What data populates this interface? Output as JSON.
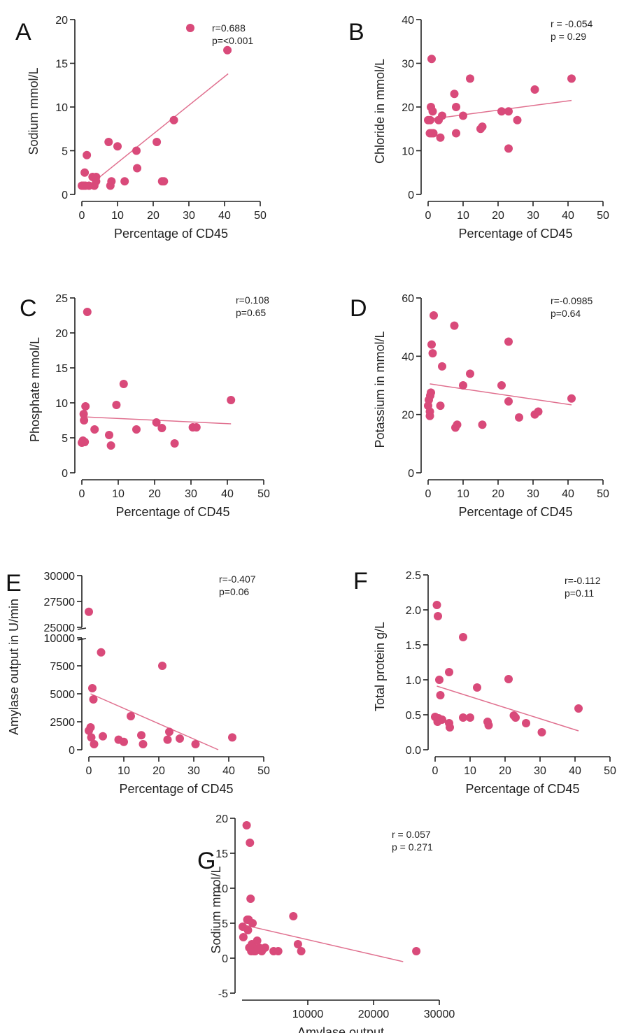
{
  "colors": {
    "point": "#d94a7a",
    "fit_line": "#e0708f",
    "axis": "#222222"
  },
  "chart_data": [
    {
      "id": "A",
      "type": "scatter",
      "panel_label": "A",
      "xlabel": "Percentage of CD45",
      "ylabel": "Sodium mmol/L",
      "xlim": [
        0,
        50
      ],
      "ylim": [
        0,
        20
      ],
      "xticks": [
        0,
        10,
        20,
        30,
        40,
        50
      ],
      "yticks": [
        0,
        5,
        10,
        15,
        20
      ],
      "stat_lines": [
        "r=0.688",
        "p=<0.001"
      ],
      "legend_marker": true,
      "fit": {
        "x": [
          3.5,
          41
        ],
        "y": [
          1.5,
          13.8
        ]
      },
      "points": [
        [
          0,
          1
        ],
        [
          0.5,
          1
        ],
        [
          0.8,
          2.5
        ],
        [
          1,
          1
        ],
        [
          1.4,
          4.5
        ],
        [
          2,
          1
        ],
        [
          3,
          2
        ],
        [
          3.5,
          1
        ],
        [
          4,
          1.5
        ],
        [
          4,
          2
        ],
        [
          7.5,
          6
        ],
        [
          8,
          1
        ],
        [
          8.3,
          1.5
        ],
        [
          10,
          5.5
        ],
        [
          12,
          1.5
        ],
        [
          15.3,
          5
        ],
        [
          15.5,
          3
        ],
        [
          21,
          6
        ],
        [
          22.5,
          1.5
        ],
        [
          23,
          1.5
        ],
        [
          25.8,
          8.5
        ],
        [
          40.8,
          16.5
        ]
      ]
    },
    {
      "id": "B",
      "type": "scatter",
      "panel_label": "B",
      "xlabel": "Percentage of CD45",
      "ylabel": "Chloride in mmol/L",
      "xlim": [
        0,
        50
      ],
      "ylim": [
        0,
        40
      ],
      "xticks": [
        0,
        10,
        20,
        30,
        40,
        50
      ],
      "yticks": [
        0,
        10,
        20,
        30,
        40
      ],
      "stat_lines": [
        "r = -0.054",
        "p = 0.29"
      ],
      "fit": {
        "x": [
          0.5,
          41
        ],
        "y": [
          17.2,
          21.5
        ]
      },
      "points": [
        [
          0,
          17
        ],
        [
          0.5,
          14
        ],
        [
          0.6,
          17
        ],
        [
          0.8,
          20
        ],
        [
          1,
          31
        ],
        [
          1,
          14
        ],
        [
          1.3,
          19
        ],
        [
          1.5,
          14
        ],
        [
          3,
          17
        ],
        [
          3.5,
          13
        ],
        [
          4,
          18
        ],
        [
          7.5,
          23
        ],
        [
          8,
          20
        ],
        [
          8,
          14
        ],
        [
          10,
          18
        ],
        [
          12,
          26.5
        ],
        [
          15,
          15
        ],
        [
          15.5,
          15.5
        ],
        [
          21,
          19
        ],
        [
          23,
          10.5
        ],
        [
          23,
          19
        ],
        [
          25.5,
          17
        ],
        [
          30.5,
          24
        ],
        [
          41,
          26.5
        ]
      ]
    },
    {
      "id": "C",
      "type": "scatter",
      "panel_label": "C",
      "xlabel": "Percentage of CD45",
      "ylabel": "Phosphate mmol/L",
      "xlim": [
        0,
        50
      ],
      "ylim": [
        0,
        25
      ],
      "xticks": [
        0,
        10,
        20,
        30,
        40,
        50
      ],
      "yticks": [
        0,
        5,
        10,
        15,
        20,
        25
      ],
      "stat_lines": [
        "r=0.108",
        "p=0.65"
      ],
      "fit": {
        "x": [
          0.5,
          41
        ],
        "y": [
          8.0,
          7.0
        ]
      },
      "points": [
        [
          0,
          4.3
        ],
        [
          0.3,
          4.6
        ],
        [
          0.5,
          8.4
        ],
        [
          0.6,
          7.5
        ],
        [
          0.8,
          4.4
        ],
        [
          1,
          9.5
        ],
        [
          1.5,
          23
        ],
        [
          3.5,
          6.2
        ],
        [
          7.5,
          5.4
        ],
        [
          8,
          3.9
        ],
        [
          9.5,
          9.7
        ],
        [
          11.5,
          12.7
        ],
        [
          15,
          6.2
        ],
        [
          20.5,
          7.2
        ],
        [
          22,
          6.4
        ],
        [
          25.5,
          4.2
        ],
        [
          30.5,
          6.5
        ],
        [
          31.5,
          6.5
        ],
        [
          41,
          10.4
        ]
      ]
    },
    {
      "id": "D",
      "type": "scatter",
      "panel_label": "D",
      "xlabel": "Percentage of CD45",
      "ylabel": "Potassium in mmol/L",
      "xlim": [
        0,
        50
      ],
      "ylim": [
        0,
        60
      ],
      "xticks": [
        0,
        10,
        20,
        30,
        40,
        50
      ],
      "yticks": [
        0,
        20,
        40,
        60
      ],
      "stat_lines": [
        "r=-0.0985",
        "p=0.64"
      ],
      "fit": {
        "x": [
          0.5,
          41
        ],
        "y": [
          30.5,
          23.3
        ]
      },
      "points": [
        [
          0,
          23
        ],
        [
          0.2,
          25
        ],
        [
          0.5,
          21
        ],
        [
          0.5,
          19.5
        ],
        [
          0.6,
          26.5
        ],
        [
          0.8,
          27.5
        ],
        [
          1,
          44
        ],
        [
          1.3,
          41
        ],
        [
          1.6,
          54
        ],
        [
          3.5,
          23
        ],
        [
          4,
          36.5
        ],
        [
          7.5,
          50.5
        ],
        [
          7.8,
          15.5
        ],
        [
          8.3,
          16.5
        ],
        [
          10,
          30
        ],
        [
          12,
          34
        ],
        [
          15.5,
          16.5
        ],
        [
          21,
          30
        ],
        [
          23,
          45
        ],
        [
          23,
          24.5
        ],
        [
          26,
          19
        ],
        [
          30.5,
          20
        ],
        [
          31.5,
          21
        ],
        [
          41,
          25.5
        ]
      ]
    },
    {
      "id": "E",
      "type": "scatter",
      "panel_label": "E",
      "xlabel": "Percentage of CD45",
      "ylabel": "Amylase output in U/min",
      "xlim": [
        0,
        50
      ],
      "ylim": [
        0,
        30000
      ],
      "axis_break": [
        10000,
        25000
      ],
      "xticks": [
        0,
        10,
        20,
        30,
        40,
        50
      ],
      "yticks_upper": [
        25000,
        27500,
        30000
      ],
      "yticks_lower": [
        0,
        2500,
        5000,
        7500,
        10000
      ],
      "ytick_labels_upper": [
        "25000",
        "27500",
        "30000"
      ],
      "ytick_labels_lower": [
        "0",
        "2500",
        "5000",
        "7500",
        "10000"
      ],
      "stat_lines": [
        "r=-0.407",
        "p=0.06"
      ],
      "fit": {
        "x": [
          0.5,
          37
        ],
        "y": [
          5000,
          0
        ]
      },
      "points": [
        [
          0,
          26500
        ],
        [
          0,
          1700
        ],
        [
          0.5,
          2000
        ],
        [
          0.7,
          1100
        ],
        [
          1,
          5500
        ],
        [
          1.3,
          4500
        ],
        [
          1.5,
          500
        ],
        [
          3.5,
          8700
        ],
        [
          4,
          1200
        ],
        [
          8.5,
          900
        ],
        [
          10,
          700
        ],
        [
          12,
          3000
        ],
        [
          15,
          1300
        ],
        [
          15.5,
          500
        ],
        [
          21,
          7500
        ],
        [
          22.5,
          900
        ],
        [
          23,
          1600
        ],
        [
          26,
          1000
        ],
        [
          30.5,
          500
        ],
        [
          41,
          1100
        ]
      ]
    },
    {
      "id": "F",
      "type": "scatter",
      "panel_label": "F",
      "xlabel": "Percentage of CD45",
      "ylabel": "Total protein g/L",
      "xlim": [
        0,
        50
      ],
      "ylim": [
        0,
        2.5
      ],
      "xticks": [
        0,
        10,
        20,
        30,
        40,
        50
      ],
      "yticks": [
        0,
        0.5,
        1.0,
        1.5,
        2.0,
        2.5
      ],
      "ytick_labels": [
        "0.0",
        "0.5",
        "1.0",
        "1.5",
        "2.0",
        "2.5"
      ],
      "stat_lines": [
        "r=-0.112",
        "p=0.11"
      ],
      "fit": {
        "x": [
          0.5,
          41
        ],
        "y": [
          0.91,
          0.27
        ]
      },
      "points": [
        [
          0,
          0.47
        ],
        [
          0.5,
          2.07
        ],
        [
          0.7,
          0.4
        ],
        [
          0.8,
          1.91
        ],
        [
          1,
          0.45
        ],
        [
          1.2,
          1.0
        ],
        [
          1.5,
          0.78
        ],
        [
          2,
          0.43
        ],
        [
          4,
          1.11
        ],
        [
          4,
          0.38
        ],
        [
          4.2,
          0.32
        ],
        [
          8,
          1.61
        ],
        [
          8,
          0.46
        ],
        [
          10,
          0.46
        ],
        [
          12,
          0.89
        ],
        [
          15,
          0.4
        ],
        [
          15.3,
          0.35
        ],
        [
          21,
          1.01
        ],
        [
          22.5,
          0.49
        ],
        [
          23,
          0.46
        ],
        [
          26,
          0.38
        ],
        [
          30.5,
          0.25
        ],
        [
          41,
          0.59
        ]
      ]
    },
    {
      "id": "G",
      "type": "scatter",
      "panel_label": "G",
      "xlabel": "Amylase output",
      "ylabel": "Sodium mmol/L",
      "xlim": [
        0,
        30000
      ],
      "ylim": [
        -5,
        20
      ],
      "xticks": [
        10000,
        20000,
        30000
      ],
      "yticks": [
        -5,
        0,
        5,
        10,
        15,
        20
      ],
      "stat_lines": [
        "r = 0.057",
        "p = 0.271"
      ],
      "fit": {
        "x": [
          500,
          24500
        ],
        "y": [
          4.7,
          -0.5
        ]
      },
      "points": [
        [
          100,
          4.5
        ],
        [
          200,
          3
        ],
        [
          700,
          19
        ],
        [
          800,
          5.5
        ],
        [
          900,
          4
        ],
        [
          1000,
          5.5
        ],
        [
          1100,
          1.5
        ],
        [
          1200,
          16.5
        ],
        [
          1300,
          8.5
        ],
        [
          1400,
          1
        ],
        [
          1500,
          2
        ],
        [
          1600,
          5
        ],
        [
          1700,
          1.5
        ],
        [
          1800,
          1
        ],
        [
          2000,
          1
        ],
        [
          2300,
          2.5
        ],
        [
          2600,
          1.5
        ],
        [
          3000,
          1
        ],
        [
          3500,
          1.5
        ],
        [
          4800,
          1
        ],
        [
          5500,
          1
        ],
        [
          7800,
          6
        ],
        [
          8500,
          2
        ],
        [
          9000,
          1
        ],
        [
          26500,
          1
        ]
      ]
    }
  ]
}
